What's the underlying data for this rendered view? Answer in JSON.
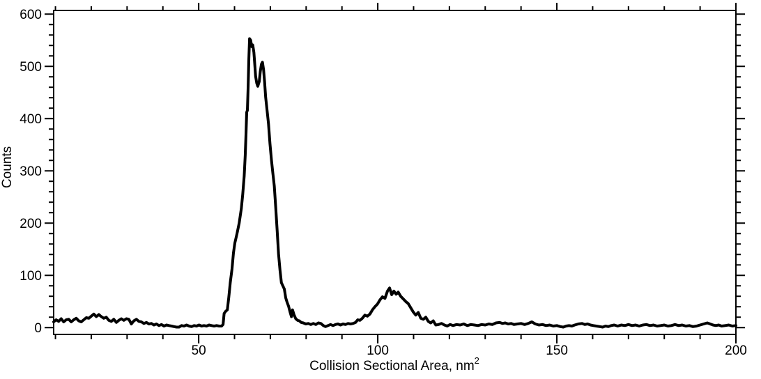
{
  "chart_data": {
    "type": "line",
    "title": "",
    "xlabel": "Collision Sectional Area, nm",
    "xlabel_sup": "2",
    "ylabel": "Counts",
    "xlim": [
      9.5,
      200
    ],
    "ylim": [
      -13,
      607
    ],
    "x_ticks": {
      "major": [
        50,
        100,
        150,
        200
      ],
      "minor_step": 10
    },
    "y_ticks": {
      "major": [
        0,
        100,
        200,
        300,
        400,
        500,
        600
      ],
      "minor_step": 20
    },
    "grid": false,
    "legend": false,
    "frame": "box-with-mirrored-outward-ticks",
    "line_color": "#000000",
    "axis_color": "#000000",
    "background": "#ffffff",
    "line_width": 4,
    "peaks_summary": [
      {
        "x": 20.7,
        "counts": 26
      },
      {
        "x": 64.2,
        "counts": 553
      },
      {
        "x": 67.8,
        "counts": 508
      },
      {
        "x": 103.3,
        "counts": 76
      }
    ],
    "points": [
      [
        9.5,
        11
      ],
      [
        10.2,
        15
      ],
      [
        10.9,
        12
      ],
      [
        11.6,
        17
      ],
      [
        12.3,
        11
      ],
      [
        13.0,
        15
      ],
      [
        13.7,
        16
      ],
      [
        14.4,
        11
      ],
      [
        15.1,
        15
      ],
      [
        15.8,
        18
      ],
      [
        16.5,
        13
      ],
      [
        17.2,
        11
      ],
      [
        17.9,
        15
      ],
      [
        18.6,
        19
      ],
      [
        19.3,
        18
      ],
      [
        20.0,
        22
      ],
      [
        20.7,
        26
      ],
      [
        21.4,
        21
      ],
      [
        22.1,
        25
      ],
      [
        22.8,
        21
      ],
      [
        23.5,
        18
      ],
      [
        24.2,
        20
      ],
      [
        24.9,
        14
      ],
      [
        25.6,
        12
      ],
      [
        26.3,
        16
      ],
      [
        27.0,
        10
      ],
      [
        27.7,
        14
      ],
      [
        28.4,
        17
      ],
      [
        29.1,
        14
      ],
      [
        29.8,
        17
      ],
      [
        30.5,
        16
      ],
      [
        31.2,
        7
      ],
      [
        31.9,
        13
      ],
      [
        32.6,
        16
      ],
      [
        33.3,
        12
      ],
      [
        34.0,
        11
      ],
      [
        34.7,
        8
      ],
      [
        35.4,
        10
      ],
      [
        36.1,
        7
      ],
      [
        36.8,
        8
      ],
      [
        37.5,
        5
      ],
      [
        38.2,
        7
      ],
      [
        38.9,
        4
      ],
      [
        39.6,
        6
      ],
      [
        40.3,
        3
      ],
      [
        41.0,
        5
      ],
      [
        41.7,
        4
      ],
      [
        42.4,
        3
      ],
      [
        43.1,
        2
      ],
      [
        43.8,
        1
      ],
      [
        44.5,
        1
      ],
      [
        45.2,
        4
      ],
      [
        45.9,
        3
      ],
      [
        46.6,
        5
      ],
      [
        47.3,
        3
      ],
      [
        48.0,
        2
      ],
      [
        48.7,
        4
      ],
      [
        49.4,
        3
      ],
      [
        50.1,
        5
      ],
      [
        50.8,
        3
      ],
      [
        51.5,
        4
      ],
      [
        52.2,
        3
      ],
      [
        52.9,
        5
      ],
      [
        53.6,
        4
      ],
      [
        54.3,
        3
      ],
      [
        55.0,
        4
      ],
      [
        55.7,
        3
      ],
      [
        56.4,
        3
      ],
      [
        56.8,
        6
      ],
      [
        57.1,
        27
      ],
      [
        57.5,
        31
      ],
      [
        58.0,
        34
      ],
      [
        58.4,
        58
      ],
      [
        58.8,
        86
      ],
      [
        59.3,
        112
      ],
      [
        59.7,
        143
      ],
      [
        60.1,
        162
      ],
      [
        60.7,
        180
      ],
      [
        61.3,
        200
      ],
      [
        61.9,
        228
      ],
      [
        62.3,
        255
      ],
      [
        62.7,
        290
      ],
      [
        63.0,
        330
      ],
      [
        63.2,
        370
      ],
      [
        63.4,
        412
      ],
      [
        63.6,
        416
      ],
      [
        63.8,
        462
      ],
      [
        64.0,
        515
      ],
      [
        64.2,
        553
      ],
      [
        64.5,
        550
      ],
      [
        64.8,
        538
      ],
      [
        65.1,
        541
      ],
      [
        65.4,
        527
      ],
      [
        65.6,
        509
      ],
      [
        65.9,
        481
      ],
      [
        66.2,
        468
      ],
      [
        66.5,
        462
      ],
      [
        66.9,
        471
      ],
      [
        67.2,
        490
      ],
      [
        67.5,
        504
      ],
      [
        67.8,
        508
      ],
      [
        68.1,
        494
      ],
      [
        68.4,
        470
      ],
      [
        68.7,
        441
      ],
      [
        69.1,
        415
      ],
      [
        69.5,
        390
      ],
      [
        69.9,
        352
      ],
      [
        70.3,
        321
      ],
      [
        70.7,
        296
      ],
      [
        71.1,
        271
      ],
      [
        71.5,
        231
      ],
      [
        71.9,
        186
      ],
      [
        72.3,
        141
      ],
      [
        72.7,
        110
      ],
      [
        73.1,
        86
      ],
      [
        73.5,
        80
      ],
      [
        73.9,
        74
      ],
      [
        74.3,
        57
      ],
      [
        74.7,
        48
      ],
      [
        75.1,
        41
      ],
      [
        75.5,
        30
      ],
      [
        75.9,
        21
      ],
      [
        76.2,
        34
      ],
      [
        76.6,
        25
      ],
      [
        77.1,
        17
      ],
      [
        77.6,
        14
      ],
      [
        78.1,
        13
      ],
      [
        78.6,
        10
      ],
      [
        79.2,
        9
      ],
      [
        79.9,
        7
      ],
      [
        80.6,
        8
      ],
      [
        81.3,
        6
      ],
      [
        82.0,
        8
      ],
      [
        82.7,
        6
      ],
      [
        83.4,
        9
      ],
      [
        84.1,
        8
      ],
      [
        84.8,
        4
      ],
      [
        85.4,
        2
      ],
      [
        86.1,
        4
      ],
      [
        86.8,
        6
      ],
      [
        87.5,
        4
      ],
      [
        88.2,
        6
      ],
      [
        88.9,
        7
      ],
      [
        89.6,
        5
      ],
      [
        90.3,
        7
      ],
      [
        91.0,
        6
      ],
      [
        91.7,
        8
      ],
      [
        92.4,
        7
      ],
      [
        93.1,
        8
      ],
      [
        93.8,
        10
      ],
      [
        94.4,
        15
      ],
      [
        95.0,
        14
      ],
      [
        95.7,
        18
      ],
      [
        96.4,
        24
      ],
      [
        97.1,
        22
      ],
      [
        97.8,
        26
      ],
      [
        98.5,
        34
      ],
      [
        99.2,
        40
      ],
      [
        99.9,
        45
      ],
      [
        100.6,
        53
      ],
      [
        101.3,
        59
      ],
      [
        102.0,
        56
      ],
      [
        102.7,
        70
      ],
      [
        103.3,
        76
      ],
      [
        103.9,
        63
      ],
      [
        104.5,
        70
      ],
      [
        105.1,
        64
      ],
      [
        105.7,
        68
      ],
      [
        106.4,
        60
      ],
      [
        107.1,
        55
      ],
      [
        107.8,
        50
      ],
      [
        108.5,
        46
      ],
      [
        109.2,
        38
      ],
      [
        109.9,
        30
      ],
      [
        110.6,
        24
      ],
      [
        111.3,
        29
      ],
      [
        112.0,
        18
      ],
      [
        112.7,
        16
      ],
      [
        113.4,
        20
      ],
      [
        114.1,
        12
      ],
      [
        114.8,
        9
      ],
      [
        115.5,
        13
      ],
      [
        116.2,
        5
      ],
      [
        117.0,
        6
      ],
      [
        117.8,
        8
      ],
      [
        118.6,
        5
      ],
      [
        119.4,
        3
      ],
      [
        120.2,
        6
      ],
      [
        121.0,
        4
      ],
      [
        122.0,
        6
      ],
      [
        123.0,
        5
      ],
      [
        124.0,
        7
      ],
      [
        125.0,
        4
      ],
      [
        126.0,
        6
      ],
      [
        127.0,
        5
      ],
      [
        128.0,
        4
      ],
      [
        129.0,
        6
      ],
      [
        130.0,
        5
      ],
      [
        131.0,
        7
      ],
      [
        132.0,
        6
      ],
      [
        133.0,
        9
      ],
      [
        134.0,
        10
      ],
      [
        134.8,
        8
      ],
      [
        135.6,
        9
      ],
      [
        136.4,
        7
      ],
      [
        137.2,
        8
      ],
      [
        138.0,
        6
      ],
      [
        139.0,
        7
      ],
      [
        140.0,
        8
      ],
      [
        141.0,
        6
      ],
      [
        142.0,
        8
      ],
      [
        143.0,
        11
      ],
      [
        144.0,
        7
      ],
      [
        145.0,
        5
      ],
      [
        146.0,
        6
      ],
      [
        147.0,
        4
      ],
      [
        148.0,
        5
      ],
      [
        149.0,
        3
      ],
      [
        150.0,
        4
      ],
      [
        151.0,
        2
      ],
      [
        151.8,
        1
      ],
      [
        152.6,
        3
      ],
      [
        153.4,
        4
      ],
      [
        154.2,
        3
      ],
      [
        155.0,
        5
      ],
      [
        156.0,
        7
      ],
      [
        157.0,
        8
      ],
      [
        157.8,
        6
      ],
      [
        158.6,
        7
      ],
      [
        159.4,
        5
      ],
      [
        160.2,
        4
      ],
      [
        161.0,
        3
      ],
      [
        162.0,
        2
      ],
      [
        162.8,
        1
      ],
      [
        163.6,
        3
      ],
      [
        164.4,
        2
      ],
      [
        165.2,
        4
      ],
      [
        166.0,
        5
      ],
      [
        167.0,
        3
      ],
      [
        168.0,
        5
      ],
      [
        169.0,
        4
      ],
      [
        170.0,
        6
      ],
      [
        171.0,
        4
      ],
      [
        172.0,
        5
      ],
      [
        173.0,
        3
      ],
      [
        174.0,
        5
      ],
      [
        175.0,
        6
      ],
      [
        176.0,
        4
      ],
      [
        177.0,
        5
      ],
      [
        178.0,
        3
      ],
      [
        179.0,
        4
      ],
      [
        180.0,
        5
      ],
      [
        181.0,
        3
      ],
      [
        182.0,
        4
      ],
      [
        183.0,
        6
      ],
      [
        184.0,
        4
      ],
      [
        185.0,
        5
      ],
      [
        186.0,
        3
      ],
      [
        187.0,
        4
      ],
      [
        188.0,
        2
      ],
      [
        189.0,
        3
      ],
      [
        190.0,
        5
      ],
      [
        191.0,
        7
      ],
      [
        192.0,
        9
      ],
      [
        192.8,
        7
      ],
      [
        193.6,
        5
      ],
      [
        194.4,
        4
      ],
      [
        195.2,
        5
      ],
      [
        196.0,
        3
      ],
      [
        197.0,
        4
      ],
      [
        198.0,
        5
      ],
      [
        199.0,
        3
      ],
      [
        200.0,
        4
      ]
    ]
  }
}
